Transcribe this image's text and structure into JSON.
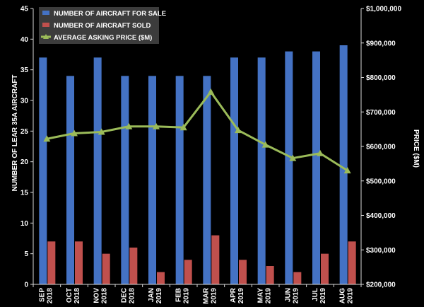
{
  "chart_data": {
    "type": "bar",
    "categories": [
      [
        "SEP",
        "2018"
      ],
      [
        "OCT",
        "2018"
      ],
      [
        "NOV",
        "2018"
      ],
      [
        "DEC",
        "2018"
      ],
      [
        "JAN",
        "2019"
      ],
      [
        "FEB",
        "2019"
      ],
      [
        "MAR",
        "2019"
      ],
      [
        "APR",
        "2019"
      ],
      [
        "MAY",
        "2019"
      ],
      [
        "JUN",
        "2019"
      ],
      [
        "JUL",
        "2019"
      ],
      [
        "AUG",
        "2019"
      ]
    ],
    "series": [
      {
        "name": "NUMBER OF AIRCRAFT FOR SALE",
        "type": "bar",
        "axis": "left",
        "color": "#4472c4",
        "values": [
          37,
          34,
          37,
          34,
          34,
          34,
          34,
          37,
          37,
          38,
          38,
          39
        ]
      },
      {
        "name": "NUMBER OF AIRCRAFT SOLD",
        "type": "bar",
        "axis": "left",
        "color": "#c0504d",
        "values": [
          7,
          7,
          5,
          6,
          2,
          4,
          8,
          4,
          3,
          2,
          5,
          7
        ]
      },
      {
        "name": "AVERAGE ASKING PRICE ($M)",
        "type": "line",
        "axis": "right",
        "color": "#9bbb59",
        "values": [
          622000,
          638000,
          642000,
          658000,
          658000,
          655000,
          758000,
          647000,
          605000,
          566000,
          580000,
          530000
        ]
      }
    ],
    "ylabel": "NUMBER OF LEAR 35A AIRCRAFT",
    "y2label": "PRICE ($M)",
    "ylim": [
      0,
      45
    ],
    "y2lim": [
      200000,
      1000000
    ],
    "yticks": [
      "0",
      "5",
      "10",
      "15",
      "20",
      "25",
      "30",
      "35",
      "40",
      "45"
    ],
    "y2ticks": [
      "$200,000",
      "$300,000",
      "$400,000",
      "$500,000",
      "$600,000",
      "$700,000",
      "$800,000",
      "$900,000",
      "$1,000,000"
    ],
    "grid": false,
    "legend_position": "top-left",
    "background": "#000000"
  }
}
